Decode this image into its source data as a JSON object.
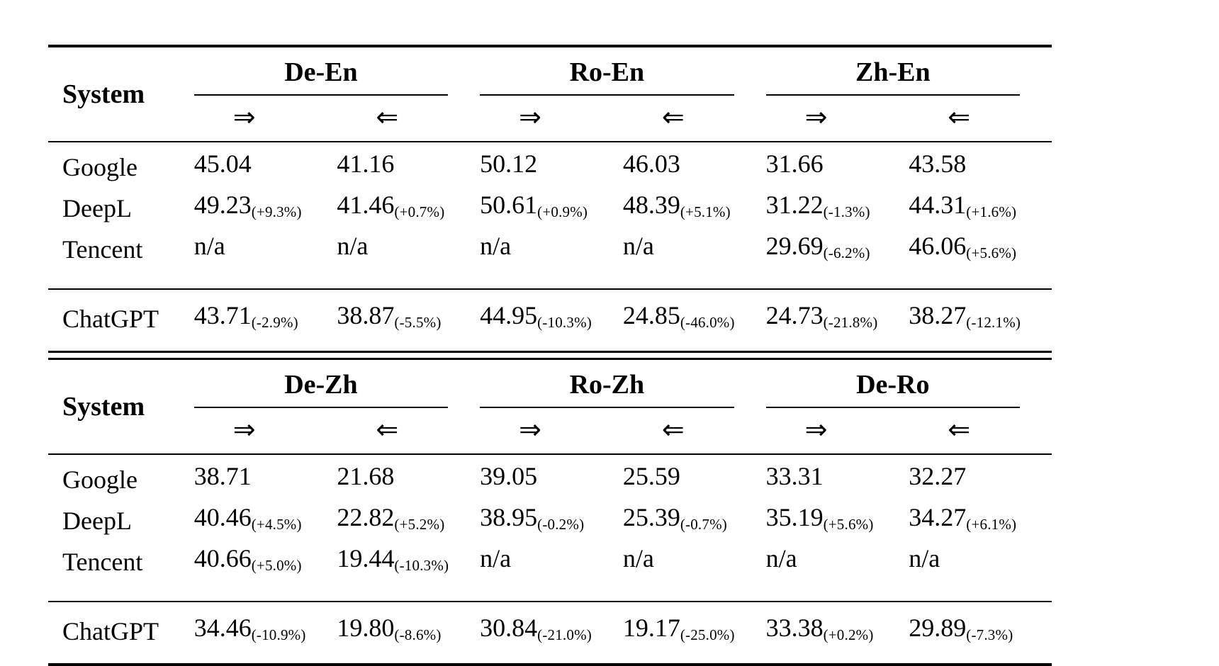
{
  "accent_colors": {
    "text": "#000000",
    "background": "#ffffff",
    "rule": "#000000"
  },
  "direction_symbols": {
    "fwd": "⇒",
    "bwd": "⇐"
  },
  "tables": [
    {
      "system_label": "System",
      "groups": [
        {
          "label": "De-En"
        },
        {
          "label": "Ro-En"
        },
        {
          "label": "Zh-En"
        }
      ],
      "rows": [
        {
          "label": "Google",
          "cells": [
            {
              "v": "45.04",
              "d": ""
            },
            {
              "v": "41.16",
              "d": ""
            },
            {
              "v": "50.12",
              "d": ""
            },
            {
              "v": "46.03",
              "d": ""
            },
            {
              "v": "31.66",
              "d": ""
            },
            {
              "v": "43.58",
              "d": ""
            }
          ]
        },
        {
          "label": "DeepL",
          "cells": [
            {
              "v": "49.23",
              "d": "(+9.3%)"
            },
            {
              "v": "41.46",
              "d": "(+0.7%)"
            },
            {
              "v": "50.61",
              "d": "(+0.9%)"
            },
            {
              "v": "48.39",
              "d": "(+5.1%)"
            },
            {
              "v": "31.22",
              "d": "(-1.3%)"
            },
            {
              "v": "44.31",
              "d": "(+1.6%)"
            }
          ]
        },
        {
          "label": "Tencent",
          "cells": [
            {
              "v": "n/a",
              "d": ""
            },
            {
              "v": "n/a",
              "d": ""
            },
            {
              "v": "n/a",
              "d": ""
            },
            {
              "v": "n/a",
              "d": ""
            },
            {
              "v": "29.69",
              "d": "(-6.2%)"
            },
            {
              "v": "46.06",
              "d": "(+5.6%)"
            }
          ]
        },
        {
          "label": "ChatGPT",
          "cells": [
            {
              "v": "43.71",
              "d": "(-2.9%)"
            },
            {
              "v": "38.87",
              "d": "(-5.5%)"
            },
            {
              "v": "44.95",
              "d": "(-10.3%)"
            },
            {
              "v": "24.85",
              "d": "(-46.0%)"
            },
            {
              "v": "24.73",
              "d": "(-21.8%)"
            },
            {
              "v": "38.27",
              "d": "(-12.1%)"
            }
          ]
        }
      ]
    },
    {
      "system_label": "System",
      "groups": [
        {
          "label": "De-Zh"
        },
        {
          "label": "Ro-Zh"
        },
        {
          "label": "De-Ro"
        }
      ],
      "rows": [
        {
          "label": "Google",
          "cells": [
            {
              "v": "38.71",
              "d": ""
            },
            {
              "v": "21.68",
              "d": ""
            },
            {
              "v": "39.05",
              "d": ""
            },
            {
              "v": "25.59",
              "d": ""
            },
            {
              "v": "33.31",
              "d": ""
            },
            {
              "v": "32.27",
              "d": ""
            }
          ]
        },
        {
          "label": "DeepL",
          "cells": [
            {
              "v": "40.46",
              "d": "(+4.5%)"
            },
            {
              "v": "22.82",
              "d": "(+5.2%)"
            },
            {
              "v": "38.95",
              "d": "(-0.2%)"
            },
            {
              "v": "25.39",
              "d": "(-0.7%)"
            },
            {
              "v": "35.19",
              "d": "(+5.6%)"
            },
            {
              "v": "34.27",
              "d": "(+6.1%)"
            }
          ]
        },
        {
          "label": "Tencent",
          "cells": [
            {
              "v": "40.66",
              "d": "(+5.0%)"
            },
            {
              "v": "19.44",
              "d": "(-10.3%)"
            },
            {
              "v": "n/a",
              "d": ""
            },
            {
              "v": "n/a",
              "d": ""
            },
            {
              "v": "n/a",
              "d": ""
            },
            {
              "v": "n/a",
              "d": ""
            }
          ]
        },
        {
          "label": "ChatGPT",
          "cells": [
            {
              "v": "34.46",
              "d": "(-10.9%)"
            },
            {
              "v": "19.80",
              "d": "(-8.6%)"
            },
            {
              "v": "30.84",
              "d": "(-21.0%)"
            },
            {
              "v": "19.17",
              "d": "(-25.0%)"
            },
            {
              "v": "33.38",
              "d": "(+0.2%)"
            },
            {
              "v": "29.89",
              "d": "(-7.3%)"
            }
          ]
        }
      ]
    }
  ]
}
